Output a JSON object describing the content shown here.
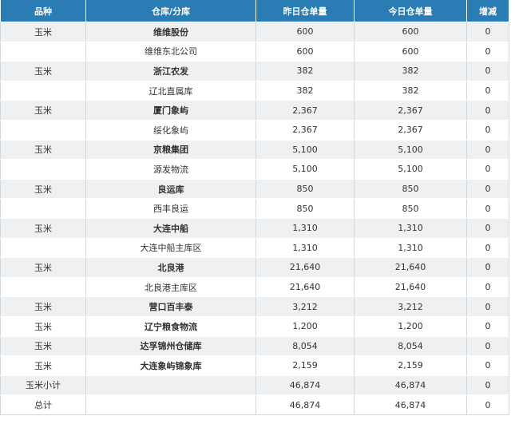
{
  "header": [
    "品种",
    "仓库/分库",
    "昨日仓单量",
    "今日仓单量",
    "增减"
  ],
  "rows": [
    {
      "cells": [
        "玉米",
        "维维股份",
        "600",
        "600",
        "0"
      ],
      "bold": true
    },
    {
      "cells": [
        "",
        "维维东北公司",
        "600",
        "600",
        "0"
      ],
      "bold": false
    },
    {
      "cells": [
        "玉米",
        "浙江农发",
        "382",
        "382",
        "0"
      ],
      "bold": true
    },
    {
      "cells": [
        "",
        "辽北直属库",
        "382",
        "382",
        "0"
      ],
      "bold": false
    },
    {
      "cells": [
        "玉米",
        "厦门象屿",
        "2,367",
        "2,367",
        "0"
      ],
      "bold": true
    },
    {
      "cells": [
        "",
        "绥化象屿",
        "2,367",
        "2,367",
        "0"
      ],
      "bold": false
    },
    {
      "cells": [
        "玉米",
        "京粮集团",
        "5,100",
        "5,100",
        "0"
      ],
      "bold": true
    },
    {
      "cells": [
        "",
        "源发物流",
        "5,100",
        "5,100",
        "0"
      ],
      "bold": false
    },
    {
      "cells": [
        "玉米",
        "良运库",
        "850",
        "850",
        "0"
      ],
      "bold": true
    },
    {
      "cells": [
        "",
        "西丰良运",
        "850",
        "850",
        "0"
      ],
      "bold": false
    },
    {
      "cells": [
        "玉米",
        "大连中船",
        "1,310",
        "1,310",
        "0"
      ],
      "bold": true
    },
    {
      "cells": [
        "",
        "大连中船主库区",
        "1,310",
        "1,310",
        "0"
      ],
      "bold": false
    },
    {
      "cells": [
        "玉米",
        "北良港",
        "21,640",
        "21,640",
        "0"
      ],
      "bold": true
    },
    {
      "cells": [
        "",
        "北良港主库区",
        "21,640",
        "21,640",
        "0"
      ],
      "bold": false
    },
    {
      "cells": [
        "玉米",
        "营口百丰泰",
        "3,212",
        "3,212",
        "0"
      ],
      "bold": true
    },
    {
      "cells": [
        "玉米",
        "辽宁粮食物流",
        "1,200",
        "1,200",
        "0"
      ],
      "bold": true
    },
    {
      "cells": [
        "玉米",
        "达孚锦州仓储库",
        "8,054",
        "8,054",
        "0"
      ],
      "bold": true
    },
    {
      "cells": [
        "玉米",
        "大连象屿锦象库",
        "2,159",
        "2,159",
        "0"
      ],
      "bold": true
    },
    {
      "cells": [
        "玉米小计",
        "",
        "46,874",
        "46,874",
        "0"
      ],
      "bold": false
    },
    {
      "cells": [
        "总计",
        "",
        "46,874",
        "46,874",
        "0"
      ],
      "bold": false
    }
  ],
  "colors": {
    "header_bg": "#2a7cb4",
    "stripe": "#eef0f2",
    "border": "#cfd6dc"
  }
}
